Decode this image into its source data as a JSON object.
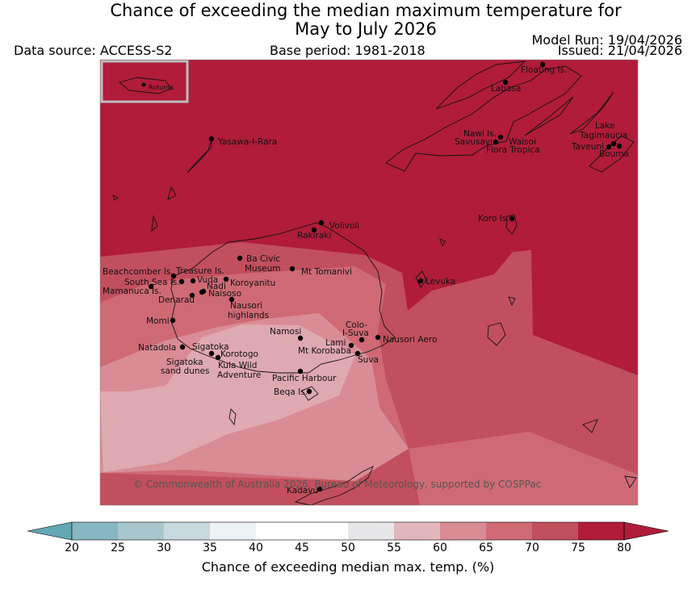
{
  "header": {
    "title_line1": "Chance of exceeding the median maximum temperature for",
    "title_line2": "May to July 2026",
    "data_source": "Data source: ACCESS-S2",
    "base_period": "Base period: 1981-2018",
    "model_run": "Model Run: 19/04/2026",
    "issued": "Issued: 21/04/2026"
  },
  "map": {
    "copyright": "© Commonwealth of Australia 2026, Bureau of Meteorology, supported by COSPPac",
    "inset_label": "Rotuma",
    "places": [
      "Floating Is.",
      "Labasa",
      "Nawi Is.",
      "Savusavu",
      "Waisoi",
      "Flora Tropica",
      "Lake",
      "Tagimaucia",
      "Taveuni",
      "Bouma",
      "Yasawa-I-Rara",
      "Volivoli",
      "Rakiraki",
      "Koro Is.",
      "Ba Civic",
      "Museum",
      "Mt Tomanivi",
      "Beachcomber Is.",
      "Treasure Is.",
      "South Sea Is.",
      "Vuda",
      "Koroyanitu",
      "Nadi",
      "Mamanuca Is.",
      "Naisoso",
      "Denarau",
      "Nausori",
      "highlands",
      "Levuka",
      "Momi",
      "Namosi",
      "Colo-",
      "I-Suva",
      "Lami",
      "Nausori Aero",
      "Mt Korobaba",
      "Suva",
      "Natadola",
      "Sigatoka",
      "Korotogo",
      "Sigatoka",
      "sand dunes",
      "Kula Wild",
      "Adventure",
      "Pacific Harbour",
      "Beqa Is.",
      "Kadavu"
    ],
    "zone_colors": {
      "p60_65": "#dfa9b0",
      "p65_70": "#d98c95",
      "p70_75": "#cf6a75",
      "p75_80": "#c24f5e",
      "p80plus": "#b01c3a"
    }
  },
  "colorbar": {
    "title": "Chance of exceeding median max. temp. (%)",
    "ticks": [
      "20",
      "25",
      "30",
      "35",
      "40",
      "45",
      "50",
      "55",
      "60",
      "65",
      "70",
      "75",
      "80"
    ],
    "colors": [
      "#62a9b5",
      "#88b6c2",
      "#a8c7cc",
      "#c7d9de",
      "#edf2f5",
      "#ffffff",
      "#ffffff",
      "#e7e7e9",
      "#e2b7bc",
      "#d98c95",
      "#cf6a75",
      "#c24f5e",
      "#b01c3a"
    ]
  }
}
